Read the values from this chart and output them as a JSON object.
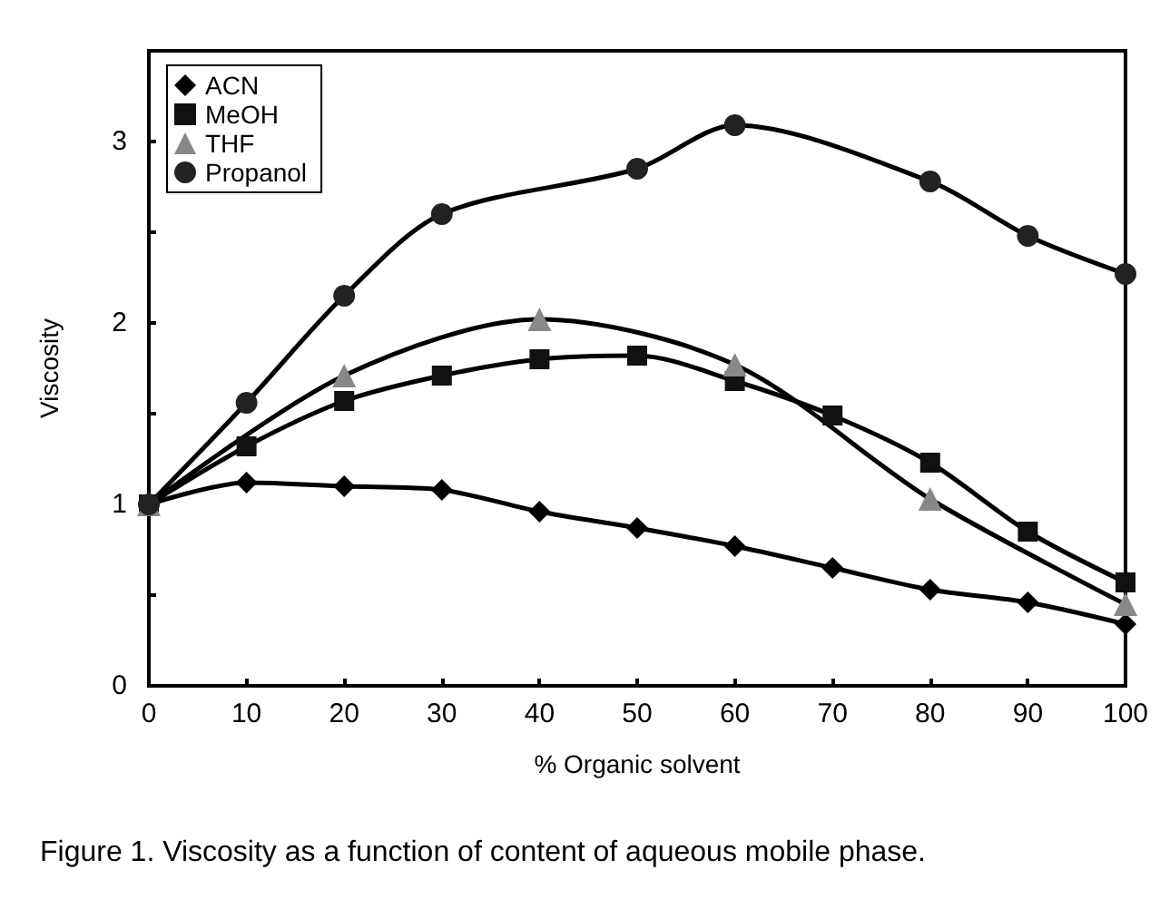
{
  "chart_data": {
    "type": "line",
    "xlabel": "% Organic solvent",
    "ylabel": "Viscosity",
    "xlim": [
      0,
      100
    ],
    "xticks": [
      0,
      10,
      20,
      30,
      40,
      50,
      60,
      70,
      80,
      90,
      100
    ],
    "ylim": [
      0,
      3.5
    ],
    "yticks": [
      0,
      {
        "value": 0.5,
        "label": null
      },
      1,
      {
        "value": 1.5,
        "label": null
      },
      2,
      {
        "value": 2.5,
        "label": null
      },
      3,
      {
        "value": 3.5,
        "label": null
      }
    ],
    "grid": false,
    "legend": "top left",
    "line_style": "solid",
    "series": [
      {
        "name": "ACN",
        "color": "#000000",
        "marker": "diamond",
        "x": [
          0,
          10,
          20,
          30,
          40,
          50,
          60,
          70,
          80,
          90,
          100
        ],
        "values": [
          1.0,
          1.12,
          1.1,
          1.08,
          0.96,
          0.87,
          0.77,
          0.65,
          0.53,
          0.46,
          0.34
        ]
      },
      {
        "name": "MeOH",
        "color": "#111111",
        "marker": "square",
        "x": [
          0,
          10,
          20,
          30,
          40,
          50,
          60,
          70,
          80,
          90,
          100
        ],
        "values": [
          1.0,
          1.32,
          1.57,
          1.71,
          1.8,
          1.82,
          1.68,
          1.49,
          1.23,
          0.85,
          0.57
        ]
      },
      {
        "name": "THF",
        "color": "#888888",
        "marker": "triangle",
        "x": [
          0,
          20,
          40,
          60,
          80,
          100
        ],
        "values": [
          1.0,
          1.71,
          2.02,
          1.77,
          1.03,
          0.45
        ]
      },
      {
        "name": "Propanol",
        "color": "#222222",
        "marker": "circle",
        "x": [
          0,
          10,
          20,
          30,
          50,
          60,
          80,
          90,
          100
        ],
        "values": [
          1.0,
          1.56,
          2.15,
          2.6,
          2.85,
          3.09,
          2.78,
          2.48,
          2.27
        ]
      }
    ],
    "annotations": [
      "Figure 1. Viscosity as a function of content of aqueous mobile phase."
    ]
  }
}
